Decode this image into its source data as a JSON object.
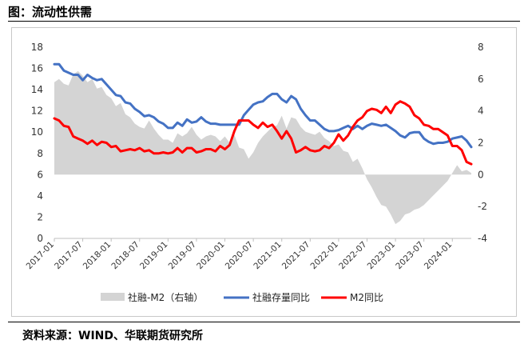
{
  "header": {
    "title": "图：流动性供需"
  },
  "footer": {
    "source": "资料来源：WIND、华联期货研究所"
  },
  "chart_data": {
    "type": "line",
    "title": "",
    "xlabel": "",
    "ylabel_left": "",
    "ylabel_right": "",
    "left_axis": {
      "min": 0,
      "max": 18,
      "ticks": [
        0,
        2,
        4,
        6,
        8,
        10,
        12,
        14,
        16,
        18
      ]
    },
    "right_axis": {
      "min": -4,
      "max": 8,
      "ticks": [
        -4,
        -2,
        0,
        2,
        4,
        6,
        8
      ]
    },
    "x_tick_labels": [
      "2017-01",
      "2017-07",
      "2018-01",
      "2018-07",
      "2019-01",
      "2019-07",
      "2020-01",
      "2020-07",
      "2021-01",
      "2021-07",
      "2022-01",
      "2022-07",
      "2023-01",
      "2023-07",
      "2024-01"
    ],
    "x_range": [
      "2017-01",
      "2024-05"
    ],
    "grid": false,
    "legend_position": "bottom",
    "colors": {
      "area": "#d4d4d4",
      "stock": "#4472c4",
      "m2": "#ff0000"
    },
    "series": [
      {
        "name": "社融-M2（右轴）",
        "kind": "area",
        "axis": "right",
        "color": "#d4d4d4",
        "points": [
          [
            "2017-01",
            5.8
          ],
          [
            "2017-02",
            6.0
          ],
          [
            "2017-03",
            5.7
          ],
          [
            "2017-04",
            5.6
          ],
          [
            "2017-05",
            6.3
          ],
          [
            "2017-06",
            6.5
          ],
          [
            "2017-07",
            6.2
          ],
          [
            "2017-08",
            5.8
          ],
          [
            "2017-09",
            6.0
          ],
          [
            "2017-10",
            5.4
          ],
          [
            "2017-11",
            5.5
          ],
          [
            "2017-12",
            5.0
          ],
          [
            "2018-01",
            4.8
          ],
          [
            "2018-02",
            4.3
          ],
          [
            "2018-03",
            4.5
          ],
          [
            "2018-04",
            3.8
          ],
          [
            "2018-05",
            3.6
          ],
          [
            "2018-06",
            3.2
          ],
          [
            "2018-07",
            3.0
          ],
          [
            "2018-08",
            2.9
          ],
          [
            "2018-09",
            3.4
          ],
          [
            "2018-10",
            2.9
          ],
          [
            "2018-11",
            2.5
          ],
          [
            "2018-12",
            2.2
          ],
          [
            "2019-01",
            2.2
          ],
          [
            "2019-02",
            2.0
          ],
          [
            "2019-03",
            2.6
          ],
          [
            "2019-04",
            2.4
          ],
          [
            "2019-05",
            2.6
          ],
          [
            "2019-06",
            3.0
          ],
          [
            "2019-07",
            2.5
          ],
          [
            "2019-08",
            2.2
          ],
          [
            "2019-09",
            2.4
          ],
          [
            "2019-10",
            2.5
          ],
          [
            "2019-11",
            2.4
          ],
          [
            "2019-12",
            2.1
          ],
          [
            "2020-01",
            2.4
          ],
          [
            "2020-02",
            2.0
          ],
          [
            "2020-03",
            2.5
          ],
          [
            "2020-04",
            1.7
          ],
          [
            "2020-05",
            1.6
          ],
          [
            "2020-06",
            1.0
          ],
          [
            "2020-07",
            1.4
          ],
          [
            "2020-08",
            2.0
          ],
          [
            "2020-09",
            2.4
          ],
          [
            "2020-10",
            2.7
          ],
          [
            "2020-11",
            3.0
          ],
          [
            "2020-12",
            3.1
          ],
          [
            "2021-01",
            3.7
          ],
          [
            "2021-02",
            2.9
          ],
          [
            "2021-03",
            3.6
          ],
          [
            "2021-04",
            3.5
          ],
          [
            "2021-05",
            3.0
          ],
          [
            "2021-06",
            2.7
          ],
          [
            "2021-07",
            2.6
          ],
          [
            "2021-08",
            2.5
          ],
          [
            "2021-09",
            2.7
          ],
          [
            "2021-10",
            2.3
          ],
          [
            "2021-11",
            2.1
          ],
          [
            "2021-12",
            1.8
          ],
          [
            "2022-01",
            1.9
          ],
          [
            "2022-02",
            1.5
          ],
          [
            "2022-03",
            1.4
          ],
          [
            "2022-04",
            0.8
          ],
          [
            "2022-05",
            1.0
          ],
          [
            "2022-06",
            0.4
          ],
          [
            "2022-07",
            -0.3
          ],
          [
            "2022-08",
            -0.8
          ],
          [
            "2022-09",
            -1.4
          ],
          [
            "2022-10",
            -1.9
          ],
          [
            "2022-11",
            -2.0
          ],
          [
            "2022-12",
            -2.5
          ],
          [
            "2023-01",
            -3.1
          ],
          [
            "2023-02",
            -2.9
          ],
          [
            "2023-03",
            -2.5
          ],
          [
            "2023-04",
            -2.4
          ],
          [
            "2023-05",
            -2.2
          ],
          [
            "2023-06",
            -2.1
          ],
          [
            "2023-07",
            -1.9
          ],
          [
            "2023-08",
            -1.6
          ],
          [
            "2023-09",
            -1.3
          ],
          [
            "2023-10",
            -1.0
          ],
          [
            "2023-11",
            -0.7
          ],
          [
            "2023-12",
            -0.4
          ],
          [
            "2024-01",
            0.1
          ],
          [
            "2024-02",
            0.6
          ],
          [
            "2024-03",
            0.2
          ],
          [
            "2024-04",
            0.3
          ],
          [
            "2024-05",
            0.1
          ]
        ]
      },
      {
        "name": "社融存量同比",
        "kind": "line",
        "axis": "left",
        "color": "#4472c4",
        "points": [
          [
            "2017-01",
            16.4
          ],
          [
            "2017-02",
            16.4
          ],
          [
            "2017-03",
            15.8
          ],
          [
            "2017-04",
            15.6
          ],
          [
            "2017-05",
            15.4
          ],
          [
            "2017-06",
            15.4
          ],
          [
            "2017-07",
            14.9
          ],
          [
            "2017-08",
            15.4
          ],
          [
            "2017-09",
            15.1
          ],
          [
            "2017-10",
            14.9
          ],
          [
            "2017-11",
            15.0
          ],
          [
            "2017-12",
            14.5
          ],
          [
            "2018-01",
            14.0
          ],
          [
            "2018-02",
            13.5
          ],
          [
            "2018-03",
            13.4
          ],
          [
            "2018-04",
            12.8
          ],
          [
            "2018-05",
            12.7
          ],
          [
            "2018-06",
            12.2
          ],
          [
            "2018-07",
            11.9
          ],
          [
            "2018-08",
            11.5
          ],
          [
            "2018-09",
            11.6
          ],
          [
            "2018-10",
            11.4
          ],
          [
            "2018-11",
            11.0
          ],
          [
            "2018-12",
            10.8
          ],
          [
            "2019-01",
            10.4
          ],
          [
            "2019-02",
            10.4
          ],
          [
            "2019-03",
            10.9
          ],
          [
            "2019-04",
            10.6
          ],
          [
            "2019-05",
            11.2
          ],
          [
            "2019-06",
            10.9
          ],
          [
            "2019-07",
            11.0
          ],
          [
            "2019-08",
            11.4
          ],
          [
            "2019-09",
            11.0
          ],
          [
            "2019-10",
            10.8
          ],
          [
            "2019-11",
            10.8
          ],
          [
            "2019-12",
            10.7
          ],
          [
            "2020-01",
            10.7
          ],
          [
            "2020-02",
            10.7
          ],
          [
            "2020-03",
            10.7
          ],
          [
            "2020-04",
            10.7
          ],
          [
            "2020-05",
            11.6
          ],
          [
            "2020-06",
            12.1
          ],
          [
            "2020-07",
            12.6
          ],
          [
            "2020-08",
            12.8
          ],
          [
            "2020-09",
            12.9
          ],
          [
            "2020-10",
            13.3
          ],
          [
            "2020-11",
            13.6
          ],
          [
            "2020-12",
            13.6
          ],
          [
            "2021-01",
            13.1
          ],
          [
            "2021-02",
            12.8
          ],
          [
            "2021-03",
            13.4
          ],
          [
            "2021-04",
            13.1
          ],
          [
            "2021-05",
            12.2
          ],
          [
            "2021-06",
            11.6
          ],
          [
            "2021-07",
            11.1
          ],
          [
            "2021-08",
            11.1
          ],
          [
            "2021-09",
            10.7
          ],
          [
            "2021-10",
            10.3
          ],
          [
            "2021-11",
            10.1
          ],
          [
            "2021-12",
            10.1
          ],
          [
            "2022-01",
            10.2
          ],
          [
            "2022-02",
            10.4
          ],
          [
            "2022-03",
            10.6
          ],
          [
            "2022-04",
            10.3
          ],
          [
            "2022-05",
            10.6
          ],
          [
            "2022-06",
            10.3
          ],
          [
            "2022-07",
            10.6
          ],
          [
            "2022-08",
            10.8
          ],
          [
            "2022-09",
            10.7
          ],
          [
            "2022-10",
            10.6
          ],
          [
            "2022-11",
            10.7
          ],
          [
            "2022-12",
            10.4
          ],
          [
            "2023-01",
            10.1
          ],
          [
            "2023-02",
            9.7
          ],
          [
            "2023-03",
            9.5
          ],
          [
            "2023-04",
            9.9
          ],
          [
            "2023-05",
            10.0
          ],
          [
            "2023-06",
            10.0
          ],
          [
            "2023-07",
            9.4
          ],
          [
            "2023-08",
            9.1
          ],
          [
            "2023-09",
            8.9
          ],
          [
            "2023-10",
            9.0
          ],
          [
            "2023-11",
            9.0
          ],
          [
            "2023-12",
            9.1
          ],
          [
            "2024-01",
            9.4
          ],
          [
            "2024-02",
            9.5
          ],
          [
            "2024-03",
            9.6
          ],
          [
            "2024-04",
            9.2
          ],
          [
            "2024-05",
            8.6
          ]
        ]
      },
      {
        "name": "M2同比",
        "kind": "line",
        "axis": "left",
        "color": "#ff0000",
        "points": [
          [
            "2017-01",
            11.3
          ],
          [
            "2017-02",
            11.1
          ],
          [
            "2017-03",
            10.6
          ],
          [
            "2017-04",
            10.5
          ],
          [
            "2017-05",
            9.6
          ],
          [
            "2017-06",
            9.4
          ],
          [
            "2017-07",
            9.2
          ],
          [
            "2017-08",
            8.9
          ],
          [
            "2017-09",
            9.2
          ],
          [
            "2017-10",
            8.8
          ],
          [
            "2017-11",
            9.1
          ],
          [
            "2017-12",
            9.0
          ],
          [
            "2018-01",
            8.6
          ],
          [
            "2018-02",
            8.7
          ],
          [
            "2018-03",
            8.2
          ],
          [
            "2018-04",
            8.3
          ],
          [
            "2018-05",
            8.4
          ],
          [
            "2018-06",
            8.3
          ],
          [
            "2018-07",
            8.5
          ],
          [
            "2018-08",
            8.2
          ],
          [
            "2018-09",
            8.3
          ],
          [
            "2018-10",
            8.0
          ],
          [
            "2018-11",
            8.0
          ],
          [
            "2018-12",
            8.1
          ],
          [
            "2019-01",
            8.0
          ],
          [
            "2019-02",
            8.1
          ],
          [
            "2019-03",
            8.5
          ],
          [
            "2019-04",
            8.1
          ],
          [
            "2019-05",
            8.5
          ],
          [
            "2019-06",
            8.5
          ],
          [
            "2019-07",
            8.1
          ],
          [
            "2019-08",
            8.2
          ],
          [
            "2019-09",
            8.4
          ],
          [
            "2019-10",
            8.4
          ],
          [
            "2019-11",
            8.2
          ],
          [
            "2019-12",
            8.7
          ],
          [
            "2020-01",
            8.4
          ],
          [
            "2020-02",
            8.8
          ],
          [
            "2020-03",
            10.1
          ],
          [
            "2020-04",
            11.1
          ],
          [
            "2020-05",
            11.1
          ],
          [
            "2020-06",
            11.1
          ],
          [
            "2020-07",
            10.7
          ],
          [
            "2020-08",
            10.4
          ],
          [
            "2020-09",
            10.9
          ],
          [
            "2020-10",
            10.5
          ],
          [
            "2020-11",
            10.7
          ],
          [
            "2020-12",
            10.1
          ],
          [
            "2021-01",
            9.4
          ],
          [
            "2021-02",
            10.1
          ],
          [
            "2021-03",
            9.4
          ],
          [
            "2021-04",
            8.1
          ],
          [
            "2021-05",
            8.3
          ],
          [
            "2021-06",
            8.6
          ],
          [
            "2021-07",
            8.3
          ],
          [
            "2021-08",
            8.2
          ],
          [
            "2021-09",
            8.3
          ],
          [
            "2021-10",
            8.7
          ],
          [
            "2021-11",
            8.5
          ],
          [
            "2021-12",
            9.0
          ],
          [
            "2022-01",
            9.8
          ],
          [
            "2022-02",
            9.2
          ],
          [
            "2022-03",
            9.7
          ],
          [
            "2022-04",
            10.5
          ],
          [
            "2022-05",
            11.1
          ],
          [
            "2022-06",
            11.4
          ],
          [
            "2022-07",
            12.0
          ],
          [
            "2022-08",
            12.2
          ],
          [
            "2022-09",
            12.1
          ],
          [
            "2022-10",
            11.8
          ],
          [
            "2022-11",
            12.4
          ],
          [
            "2022-12",
            11.8
          ],
          [
            "2023-01",
            12.6
          ],
          [
            "2023-02",
            12.9
          ],
          [
            "2023-03",
            12.7
          ],
          [
            "2023-04",
            12.4
          ],
          [
            "2023-05",
            11.6
          ],
          [
            "2023-06",
            11.3
          ],
          [
            "2023-07",
            10.7
          ],
          [
            "2023-08",
            10.6
          ],
          [
            "2023-09",
            10.3
          ],
          [
            "2023-10",
            10.3
          ],
          [
            "2023-11",
            10.0
          ],
          [
            "2023-12",
            9.7
          ],
          [
            "2024-01",
            8.7
          ],
          [
            "2024-02",
            8.7
          ],
          [
            "2024-03",
            8.3
          ],
          [
            "2024-04",
            7.2
          ],
          [
            "2024-05",
            7.0
          ]
        ]
      }
    ]
  }
}
